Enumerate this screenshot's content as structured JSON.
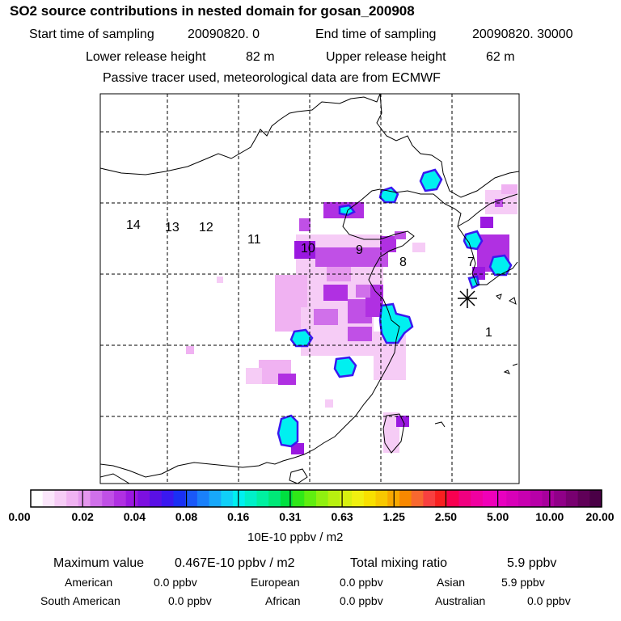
{
  "header": {
    "title": "SO2 source contributions in nested domain for gosan_200908",
    "start_label": "Start time of sampling",
    "start_value": "20090820.     0",
    "end_label": "End time of sampling",
    "end_value": "20090820. 30000",
    "lower_label": "Lower release height",
    "lower_value": "82 m",
    "upper_label": "Upper release height",
    "upper_value": "62 m",
    "note": "Passive tracer used, meteorological data are from ECMWF"
  },
  "map": {
    "region_labels": [
      "14",
      "13",
      "12",
      "11",
      "10",
      "9",
      "8",
      "7",
      "1"
    ],
    "receptor": "gosan",
    "land_border_color": "#000000"
  },
  "colorbar": {
    "tick_labels": [
      "0.00",
      "0.02",
      "0.04",
      "0.08",
      "0.16",
      "0.31",
      "0.63",
      "1.25",
      "2.50",
      "5.00",
      "10.00",
      "20.00"
    ],
    "colors": [
      "#ffffff",
      "#fbe6fb",
      "#f6ccf6",
      "#f0b2f2",
      "#e597ee",
      "#d070ea",
      "#c050e6",
      "#b030e2",
      "#9a18e0",
      "#7d10e0",
      "#5a10e6",
      "#3a18f0",
      "#1a30f4",
      "#1a58f8",
      "#1a80fa",
      "#18a8fa",
      "#10d0f8",
      "#00f0f0",
      "#00f0c8",
      "#00f0a0",
      "#00e878",
      "#00e040",
      "#30e818",
      "#60ee10",
      "#90f010",
      "#b8f010",
      "#d8f010",
      "#f0f010",
      "#f8e000",
      "#f8c800",
      "#f8a800",
      "#f88800",
      "#f86830",
      "#f84040",
      "#f82020",
      "#f80050",
      "#f00080",
      "#f000a0",
      "#f000b8",
      "#e800c0",
      "#d800b8",
      "#c800b0",
      "#b800a8",
      "#a8009c",
      "#900088",
      "#780070",
      "#600058",
      "#4a0046"
    ],
    "unit": "10E-10 ppbv / m2"
  },
  "summary": {
    "max_label": "Maximum value",
    "max_value": "0.467E-10 ppbv / m2",
    "total_label": "Total mixing ratio",
    "total_value": "5.9 ppbv",
    "american_label": "American",
    "american_value": "0.0 ppbv",
    "european_label": "European",
    "european_value": "0.0 ppbv",
    "asian_label": "Asian",
    "asian_value": "5.9 ppbv",
    "south_american_label": "South American",
    "south_american_value": "0.0 ppbv",
    "african_label": "African",
    "african_value": "0.0 ppbv",
    "australian_label": "Australian",
    "australian_value": "0.0 ppbv"
  }
}
